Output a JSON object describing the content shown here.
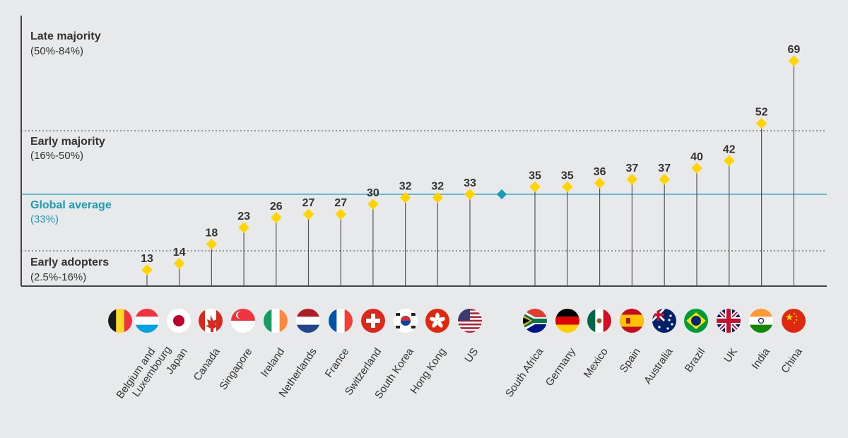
{
  "chart_data": {
    "type": "scatter",
    "categories": [
      "Belgium and Luxembourg",
      "Japan",
      "Canada",
      "Singapore",
      "Ireland",
      "Netherlands",
      "France",
      "Switzerland",
      "South Korea",
      "Hong Kong",
      "US",
      "South Africa",
      "Germany",
      "Mexico",
      "Spain",
      "Australia",
      "Brazil",
      "UK",
      "India",
      "China"
    ],
    "values": [
      13,
      14,
      18,
      23,
      26,
      27,
      27,
      30,
      32,
      32,
      33,
      35,
      35,
      36,
      37,
      37,
      40,
      42,
      52,
      69
    ],
    "global_average": {
      "label": "Global average",
      "sublabel": "(33%)",
      "value": 33
    },
    "bands": [
      {
        "label": "Late majority",
        "range": "(50%-84%)"
      },
      {
        "label": "Early majority",
        "range": "(16%-50%)"
      },
      {
        "label": "Early adopters",
        "range": "(2.5%-16%)"
      }
    ],
    "band_boundaries": [
      16,
      50
    ],
    "ylim": [
      0,
      75
    ],
    "grid": false,
    "colors": {
      "marker": "#ffd400",
      "average": "#1a9cb4",
      "axis": "#444444",
      "text": "#333333"
    },
    "flag_icons": [
      "belgium-flag-icon",
      "luxembourg-flag-icon",
      "japan-flag-icon",
      "canada-flag-icon",
      "singapore-flag-icon",
      "ireland-flag-icon",
      "netherlands-flag-icon",
      "france-flag-icon",
      "switzerland-flag-icon",
      "south-korea-flag-icon",
      "hong-kong-flag-icon",
      "us-flag-icon",
      "south-africa-flag-icon",
      "germany-flag-icon",
      "mexico-flag-icon",
      "spain-flag-icon",
      "australia-flag-icon",
      "brazil-flag-icon",
      "uk-flag-icon",
      "india-flag-icon",
      "china-flag-icon"
    ]
  }
}
